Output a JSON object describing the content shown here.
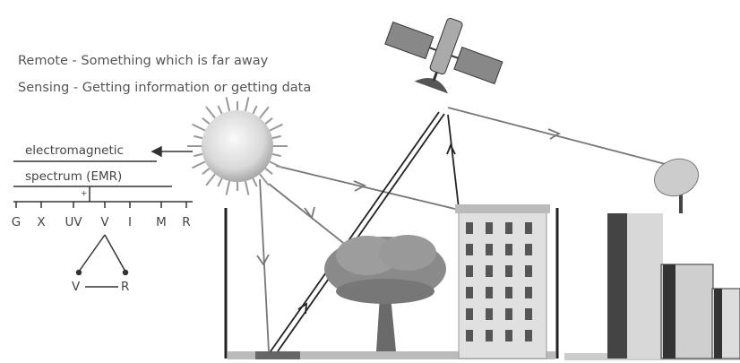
{
  "definitions": {
    "remote": "Remote - Something which is far away",
    "sensing": "Sensing - Getting information or getting data"
  },
  "spectrum": {
    "line1": "electromagnetic",
    "line2": "spectrum (EMR)",
    "divider": "+",
    "bands": [
      "G",
      "X",
      "UV",
      "V",
      "I",
      "M",
      "R"
    ],
    "triangle": {
      "left": "V",
      "right": "R"
    }
  }
}
